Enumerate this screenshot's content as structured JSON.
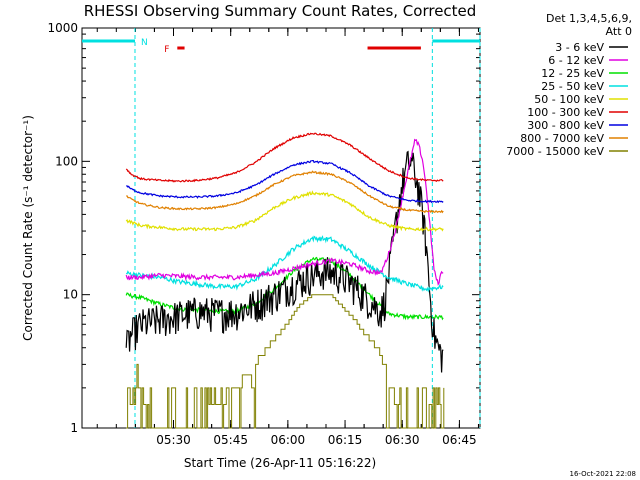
{
  "chart_data": {
    "type": "line",
    "title": "RHESSI Observing Summary Count Rates, Corrected",
    "xlabel": "Start Time (26-Apr-11 05:16:22)",
    "ylabel": "Corrected Count Rate (s⁻¹ detector⁻¹)",
    "x_unit": "minutes after 05:16:22",
    "xlim": [
      -10.4,
      94
    ],
    "ylim": [
      1,
      1000
    ],
    "log_y": true,
    "x_ticks": [
      {
        "value": 13.6,
        "label": "05:30"
      },
      {
        "value": 28.6,
        "label": "05:45"
      },
      {
        "value": 43.6,
        "label": "06:00"
      },
      {
        "value": 58.6,
        "label": "06:15"
      },
      {
        "value": 73.6,
        "label": "06:30"
      },
      {
        "value": 88.6,
        "label": "06:45"
      }
    ],
    "y_ticks": [
      {
        "value": 1,
        "label": "1"
      },
      {
        "value": 10,
        "label": "10"
      },
      {
        "value": 100,
        "label": "100"
      },
      {
        "value": 1000,
        "label": "1000"
      }
    ],
    "legend": {
      "header": [
        "Det 1,3,4,5,6,9,",
        "Att 0"
      ],
      "placement": "right"
    },
    "annotations": {
      "night_label": "N",
      "flare_label": "F",
      "timestamp": "16-Oct-2021 22:08",
      "night_bars": [
        [
          -10.4,
          3.5
        ],
        [
          81.5,
          94
        ]
      ],
      "night_lines": [
        3.5,
        81.5,
        94
      ],
      "flare_bars": [
        [
          14.6,
          16.5
        ],
        [
          64.5,
          78.5
        ]
      ],
      "colors": {
        "night": "#00e0e0",
        "flare": "#e00000"
      }
    },
    "series": [
      {
        "name": "3 - 6 keV",
        "color": "#000000",
        "noise": 0.3,
        "x": [
          1.2,
          2.5,
          5,
          10,
          15,
          20,
          25,
          30,
          35,
          40,
          45,
          50,
          53,
          56,
          59,
          62,
          65,
          67,
          68,
          69,
          70,
          71,
          72,
          73,
          74,
          75,
          76,
          77,
          78,
          79,
          80,
          81,
          82,
          83,
          84,
          84.5
        ],
        "y": [
          4,
          5,
          6,
          6.5,
          7,
          7.5,
          7.3,
          7.5,
          8.5,
          10,
          12,
          14,
          15,
          14.5,
          13,
          11,
          9,
          8,
          7.5,
          9,
          14,
          22,
          35,
          55,
          75,
          95,
          100,
          80,
          60,
          40,
          22,
          9,
          5,
          4,
          3.5,
          3.5
        ]
      },
      {
        "name": "6 - 12 keV",
        "color": "#e000e0",
        "noise": 0.04,
        "x": [
          1.2,
          5,
          10,
          20,
          30,
          40,
          50,
          55,
          60,
          65,
          68,
          70,
          72,
          74,
          76,
          77,
          78,
          79,
          80,
          81,
          82,
          83,
          84,
          84.5
        ],
        "y": [
          13.5,
          13.5,
          14,
          13.5,
          13.5,
          14.5,
          17,
          18,
          17,
          15,
          14.5,
          20,
          32,
          60,
          110,
          145,
          130,
          100,
          60,
          30,
          15,
          12,
          15,
          15
        ]
      },
      {
        "name": "12 - 25 keV",
        "color": "#00e000",
        "noise": 0.035,
        "x": [
          1.2,
          5,
          10,
          15,
          20,
          25,
          30,
          35,
          40,
          45,
          50,
          55,
          60,
          65,
          70,
          75,
          80,
          84.5
        ],
        "y": [
          10,
          9.5,
          8.5,
          7.8,
          7.7,
          7.5,
          7.5,
          8.5,
          11,
          15,
          18.5,
          18,
          14,
          10,
          7.2,
          6.8,
          6.8,
          6.8
        ]
      },
      {
        "name": "25 - 50 keV",
        "color": "#00e0e0",
        "noise": 0.04,
        "x": [
          1.2,
          5,
          10,
          15,
          20,
          25,
          30,
          35,
          40,
          45,
          50,
          55,
          60,
          65,
          70,
          75,
          80,
          84.5
        ],
        "y": [
          14.5,
          14,
          13.5,
          12.5,
          12,
          11.5,
          11.5,
          13,
          16.5,
          22,
          26.5,
          26,
          21,
          16.5,
          13.5,
          12,
          11,
          11.5
        ]
      },
      {
        "name": "50 - 100 keV",
        "color": "#e0e000",
        "noise": 0.025,
        "x": [
          1.2,
          2.5,
          5,
          10,
          15,
          20,
          25,
          30,
          35,
          40,
          45,
          50,
          55,
          60,
          65,
          70,
          75,
          80,
          84.5
        ],
        "y": [
          36,
          35,
          33,
          32,
          31,
          31,
          31,
          32,
          36,
          45,
          53,
          58,
          56,
          48,
          38,
          33,
          31,
          31,
          31
        ]
      },
      {
        "name": "100 - 300 keV",
        "color": "#e00000",
        "noise": 0.015,
        "x": [
          1.2,
          2.5,
          5,
          10,
          15,
          20,
          25,
          30,
          35,
          40,
          45,
          50,
          55,
          60,
          65,
          70,
          75,
          80,
          84.5
        ],
        "y": [
          88,
          80,
          74,
          72,
          71,
          72,
          75,
          82,
          98,
          125,
          150,
          162,
          155,
          132,
          105,
          85,
          75,
          72,
          72
        ]
      },
      {
        "name": "300 - 800 keV",
        "color": "#0000e0",
        "noise": 0.015,
        "x": [
          1.2,
          2.5,
          5,
          10,
          15,
          20,
          25,
          30,
          35,
          40,
          45,
          50,
          55,
          60,
          65,
          70,
          75,
          80,
          84.5
        ],
        "y": [
          66,
          62,
          58,
          55,
          54,
          54,
          55,
          58,
          66,
          80,
          94,
          100,
          96,
          82,
          65,
          55,
          51,
          50,
          50
        ]
      },
      {
        "name": "800 - 7000 keV",
        "color": "#e08000",
        "noise": 0.015,
        "x": [
          1.2,
          2.5,
          5,
          10,
          15,
          20,
          25,
          30,
          35,
          40,
          45,
          50,
          55,
          60,
          65,
          70,
          75,
          80,
          84.5
        ],
        "y": [
          55,
          52,
          48,
          45,
          44,
          44,
          45,
          48,
          55,
          67,
          78,
          83,
          80,
          69,
          55,
          46,
          43,
          42,
          42
        ]
      },
      {
        "name": "7000 - 15000 keV",
        "color": "#808000",
        "noise": 0,
        "x": [
          1.2,
          2,
          3,
          4,
          6,
          8,
          10,
          12,
          15,
          20,
          25,
          30,
          35,
          38,
          41,
          44,
          47,
          50,
          52,
          55,
          58,
          61,
          64,
          67,
          70,
          72,
          75,
          78,
          80,
          82,
          84.5
        ],
        "y": [
          1,
          2,
          1,
          3,
          1.5,
          1,
          1,
          1,
          1,
          1,
          1.5,
          2,
          3,
          4,
          5,
          6.5,
          8.5,
          10,
          10,
          10,
          8,
          6.5,
          5,
          4,
          2.5,
          1.5,
          1,
          1,
          1,
          2,
          1
        ]
      }
    ]
  }
}
